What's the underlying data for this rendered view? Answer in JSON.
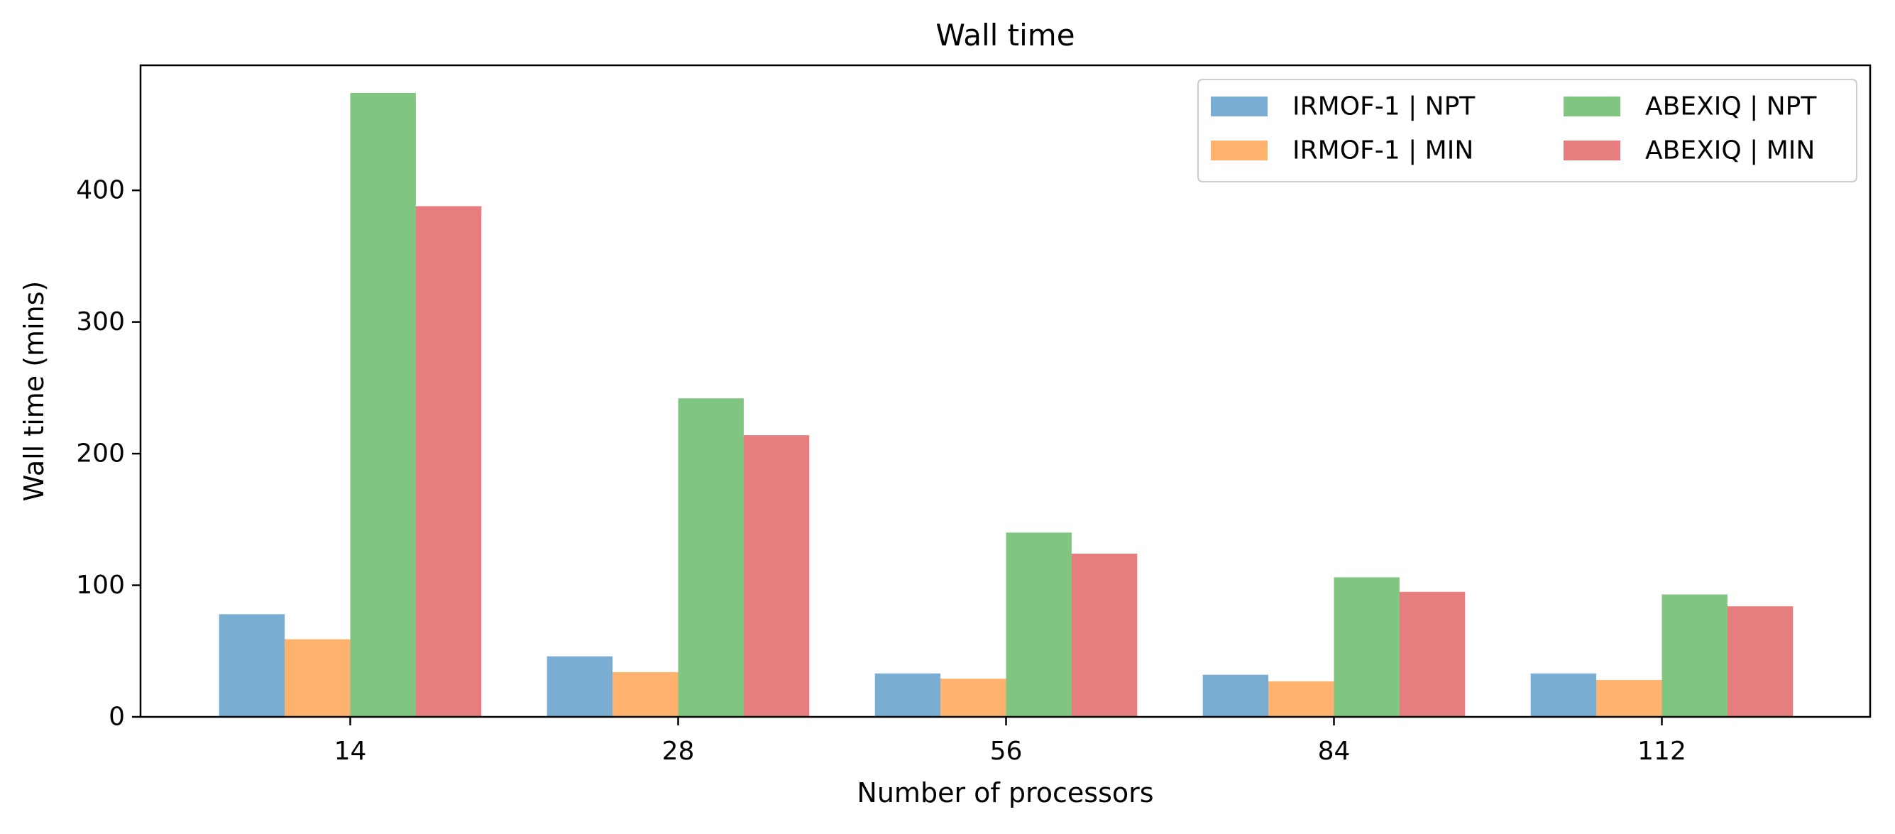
{
  "chart_data": {
    "type": "bar",
    "title": "Wall time",
    "xlabel": "Number of processors",
    "ylabel": "Wall time (mins)",
    "categories": [
      "14",
      "28",
      "56",
      "84",
      "112"
    ],
    "ylim": [
      0,
      495
    ],
    "yticks": [
      0,
      100,
      200,
      300,
      400
    ],
    "grid": false,
    "legend": {
      "placement": "top-right",
      "columns": 2
    },
    "series": [
      {
        "name": "IRMOF-1 | NPT",
        "color": "#1f77b4",
        "values": [
          78,
          46,
          33,
          32,
          33
        ]
      },
      {
        "name": "IRMOF-1 | MIN",
        "color": "#ff7f0e",
        "values": [
          59,
          34,
          29,
          27,
          28
        ]
      },
      {
        "name": "ABEXIQ | NPT",
        "color": "#2ca02c",
        "values": [
          474,
          242,
          140,
          106,
          93
        ]
      },
      {
        "name": "ABEXIQ | MIN",
        "color": "#d62728",
        "values": [
          388,
          214,
          124,
          95,
          84
        ]
      }
    ]
  }
}
